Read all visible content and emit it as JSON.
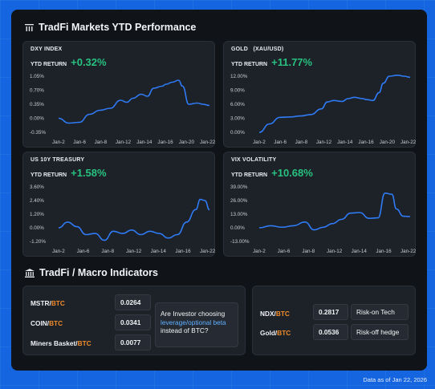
{
  "header": {
    "title": "TradFi Markets YTD Performance",
    "icon": "bar-chart-icon"
  },
  "macro": {
    "title": "TradFi / Macro Indicators",
    "icon": "bank-icon",
    "left_rows": [
      {
        "name": "MSTR/",
        "suffix": "BTC",
        "value": "0.0264"
      },
      {
        "name": "COIN/",
        "suffix": "BTC",
        "value": "0.0341"
      },
      {
        "name": "Miners Basket/",
        "suffix": "BTC",
        "value": "0.0077"
      }
    ],
    "question": {
      "pre": "Are Investor choosing ",
      "highlight": "leverage/optional beta",
      "post": " instead of BTC?"
    },
    "right_rows": [
      {
        "name": "NDX/",
        "suffix": "BTC",
        "value": "0.2817",
        "tag": "Risk-on Tech"
      },
      {
        "name": "Gold/",
        "suffix": "BTC",
        "value": "0.0536",
        "tag": "Risk-off hedge"
      }
    ]
  },
  "footer": {
    "text": "Data as of Jan 22, 2026"
  },
  "cards": {
    "dxy": {
      "label": "DXY INDEX",
      "ytd_label": "YTD RETURN",
      "ytd_value": "+0.32%"
    },
    "gold": {
      "label": "GOLD   (XAU/USD)",
      "ytd_label": "YTD RETURN",
      "ytd_value": "+11.77%"
    },
    "us10y": {
      "label": "US 10Y TREASURY",
      "ytd_label": "YTD RETURN",
      "ytd_value": "+1.58%"
    },
    "vix": {
      "label": "VIX VOLATILITY",
      "ytd_label": "YTD RETURN",
      "ytd_value": "+10.68%"
    }
  },
  "colors": {
    "line": "#2f7bf5",
    "positive": "#27c280",
    "btc": "#f08c2b",
    "highlight": "#5fb0ff"
  },
  "chart_data": [
    {
      "type": "line",
      "title": "DXY INDEX",
      "x_ticks": [
        "Jan-2",
        "Jan-6",
        "Jan-8",
        "Jan-12",
        "Jan-14",
        "Jan-16",
        "Jan-20",
        "Jan-22"
      ],
      "y_ticks": [
        "1.05%",
        "0.70%",
        "0.35%",
        "0.00%",
        "-0.35%"
      ],
      "ylim": [
        -0.35,
        1.05
      ],
      "x": [
        0,
        0.5,
        1,
        1.5,
        2,
        2.5,
        3,
        3.3,
        3.6,
        4,
        4.3,
        4.6,
        5,
        5.2,
        5.5,
        5.8,
        6,
        6.3,
        6.7,
        7,
        7.3
      ],
      "y": [
        0.0,
        -0.12,
        -0.1,
        0.1,
        0.2,
        0.25,
        0.45,
        0.4,
        0.5,
        0.6,
        0.55,
        0.75,
        0.8,
        0.85,
        0.9,
        0.95,
        0.8,
        0.35,
        0.38,
        0.35,
        0.32
      ]
    },
    {
      "type": "line",
      "title": "GOLD (XAU/USD)",
      "x_ticks": [
        "Jan-2",
        "Jan-6",
        "Jan-8",
        "Jan-12",
        "Jan-14",
        "Jan-16",
        "Jan-20",
        "Jan-22"
      ],
      "y_ticks": [
        "12.00%",
        "9.00%",
        "6.00%",
        "3.00%",
        "0.00%"
      ],
      "ylim": [
        0,
        12
      ],
      "x": [
        0,
        0.5,
        1,
        1.5,
        2,
        2.5,
        3,
        3.3,
        3.6,
        4,
        4.3,
        4.6,
        5,
        5.2,
        5.5,
        5.8,
        6,
        6.3,
        6.7,
        7,
        7.3
      ],
      "y": [
        0,
        1.8,
        3.2,
        3.3,
        3.5,
        3.8,
        5.0,
        6.5,
        6.8,
        6.6,
        7.2,
        7.5,
        7.2,
        7.0,
        6.8,
        8.5,
        10.5,
        12.0,
        12.2,
        12.0,
        11.77
      ]
    },
    {
      "type": "line",
      "title": "US 10Y TREASURY",
      "x_ticks": [
        "Jan-2",
        "Jan-6",
        "Jan-8",
        "Jan-12",
        "Jan-14",
        "Jan-16",
        "Jan-22"
      ],
      "y_ticks": [
        "3.60%",
        "2.40%",
        "1.20%",
        "0.00%",
        "-1.20%"
      ],
      "ylim": [
        -1.2,
        3.6
      ],
      "x": [
        0,
        0.4,
        0.8,
        1.2,
        1.6,
        2.0,
        2.4,
        2.8,
        3.2,
        3.6,
        4.0,
        4.4,
        4.8,
        5.2,
        5.6,
        6.0,
        6.2,
        6.4,
        6.6
      ],
      "y": [
        0.0,
        0.5,
        0.1,
        -0.6,
        -0.5,
        -1.1,
        -0.3,
        -0.5,
        -0.2,
        -0.6,
        -0.3,
        -0.5,
        -0.9,
        -0.6,
        0.5,
        1.6,
        2.5,
        2.4,
        1.58
      ]
    },
    {
      "type": "line",
      "title": "VIX VOLATILITY",
      "x_ticks": [
        "Jan-2",
        "Jan-6",
        "Jan-8",
        "Jan-12",
        "Jan-14",
        "Jan-16",
        "Jan-22"
      ],
      "y_ticks": [
        "39.00%",
        "26.00%",
        "13.00%",
        "0.00%",
        "-13.00%"
      ],
      "ylim": [
        -13,
        39
      ],
      "x": [
        0,
        0.5,
        1.0,
        1.5,
        2.0,
        2.4,
        2.8,
        3.2,
        3.6,
        4.0,
        4.4,
        4.8,
        5.2,
        5.5,
        5.8,
        6.0,
        6.3,
        6.6
      ],
      "y": [
        0,
        2.0,
        0.5,
        2.0,
        5.5,
        -2.0,
        0.5,
        4.0,
        8.0,
        14.0,
        14.5,
        9.0,
        9.5,
        33.0,
        32.0,
        18.0,
        11.0,
        10.68
      ]
    }
  ]
}
